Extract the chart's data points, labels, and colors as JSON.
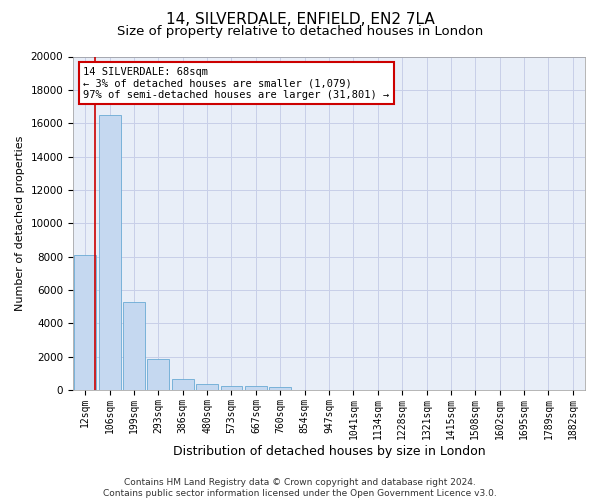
{
  "title": "14, SILVERDALE, ENFIELD, EN2 7LA",
  "subtitle": "Size of property relative to detached houses in London",
  "xlabel": "Distribution of detached houses by size in London",
  "ylabel": "Number of detached properties",
  "categories": [
    "12sqm",
    "106sqm",
    "199sqm",
    "293sqm",
    "386sqm",
    "480sqm",
    "573sqm",
    "667sqm",
    "760sqm",
    "854sqm",
    "947sqm",
    "1041sqm",
    "1134sqm",
    "1228sqm",
    "1321sqm",
    "1415sqm",
    "1508sqm",
    "1602sqm",
    "1695sqm",
    "1789sqm",
    "1882sqm"
  ],
  "values": [
    8100,
    16500,
    5300,
    1850,
    700,
    350,
    280,
    230,
    200,
    0,
    0,
    0,
    0,
    0,
    0,
    0,
    0,
    0,
    0,
    0,
    0
  ],
  "bar_color": "#c5d8f0",
  "bar_edge_color": "#6aaad4",
  "vline_color": "#cc0000",
  "vline_x": 0.42,
  "annotation_text": "14 SILVERDALE: 68sqm\n← 3% of detached houses are smaller (1,079)\n97% of semi-detached houses are larger (31,801) →",
  "annotation_box_facecolor": "#ffffff",
  "annotation_box_edgecolor": "#cc0000",
  "ylim": [
    0,
    20000
  ],
  "yticks": [
    0,
    2000,
    4000,
    6000,
    8000,
    10000,
    12000,
    14000,
    16000,
    18000,
    20000
  ],
  "grid_color": "#c8cfe8",
  "background_color": "#e8eef8",
  "footer_text": "Contains HM Land Registry data © Crown copyright and database right 2024.\nContains public sector information licensed under the Open Government Licence v3.0.",
  "title_fontsize": 11,
  "subtitle_fontsize": 9.5,
  "xlabel_fontsize": 9,
  "ylabel_fontsize": 8,
  "tick_fontsize": 7,
  "annotation_fontsize": 7.5,
  "footer_fontsize": 6.5
}
